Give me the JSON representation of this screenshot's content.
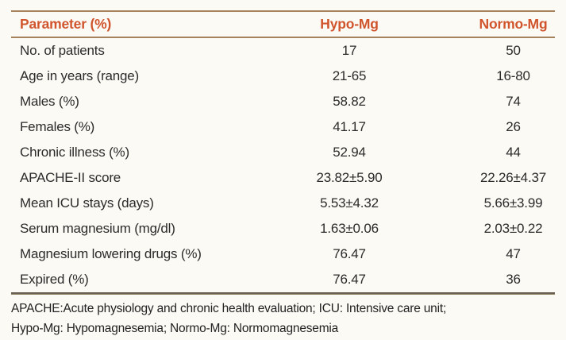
{
  "chart_data": {
    "type": "table",
    "columns": [
      "Parameter (%)",
      "Hypo-Mg",
      "Normo-Mg"
    ],
    "rows": [
      [
        "No. of patients",
        "17",
        "50"
      ],
      [
        "Age in years (range)",
        "21-65",
        "16-80"
      ],
      [
        "Males (%)",
        "58.82",
        "74"
      ],
      [
        "Females (%)",
        "41.17",
        "26"
      ],
      [
        "Chronic illness (%)",
        "52.94",
        "44"
      ],
      [
        "APACHE-II score",
        "23.82±5.90",
        "22.26±4.37"
      ],
      [
        "Mean ICU stays (days)",
        "5.53±4.32",
        "5.66±3.99"
      ],
      [
        "Serum magnesium (mg/dl)",
        "1.63±0.06",
        "2.03±0.22"
      ],
      [
        "Magnesium lowering drugs (%)",
        "76.47",
        "47"
      ],
      [
        "Expired (%)",
        "76.47",
        "36"
      ]
    ],
    "footnotes": [
      "APACHE:Acute physiology and chronic health evaluation; ICU: Intensive care unit;",
      "Hypo-Mg: Hypomagnesemia; Normo-Mg: Normomagnesemia"
    ]
  },
  "colors": {
    "accent_header_text": "#d0552d",
    "rule_tan": "#a5825c",
    "rule_dark": "#4f4a3c",
    "background": "#fcfaf5",
    "body_text": "#2b2b2b"
  }
}
